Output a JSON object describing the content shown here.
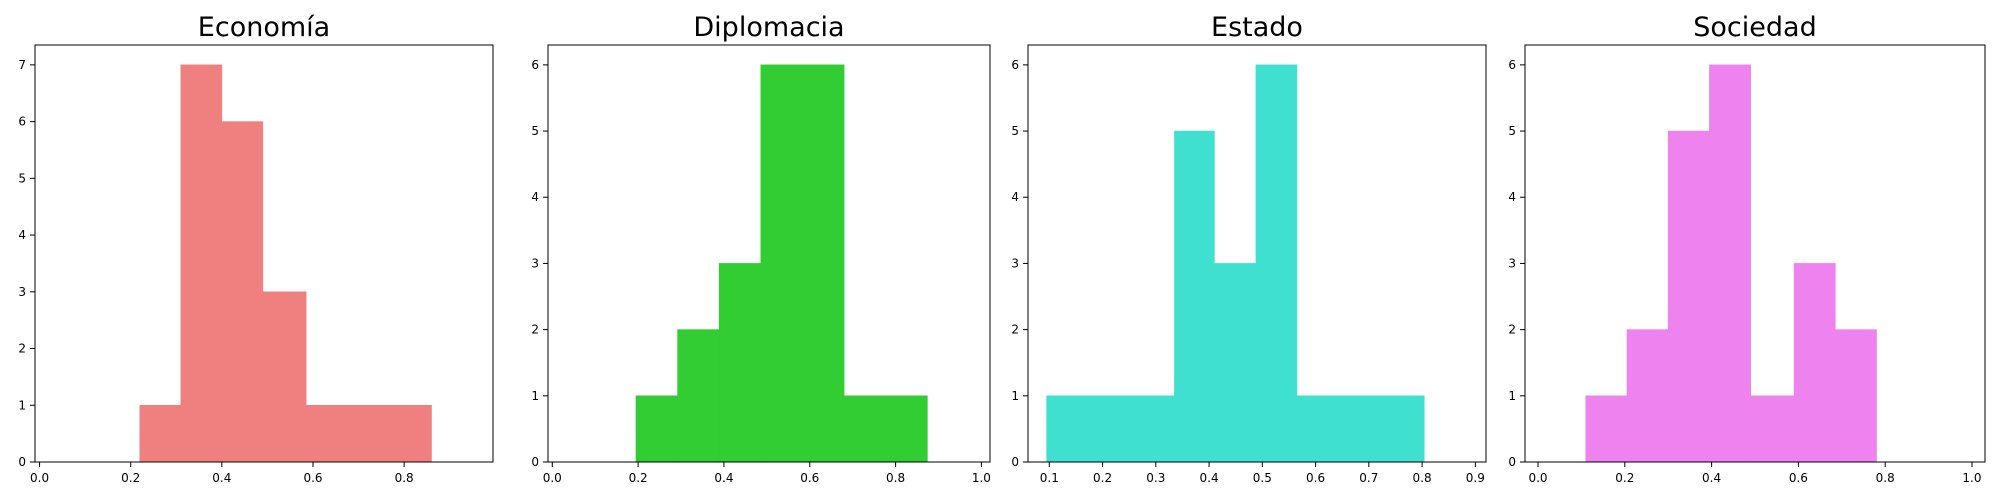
{
  "chart_data": [
    {
      "type": "bar",
      "title": "Economía",
      "color": "#f08080",
      "bins": [
        {
          "x0": 0.22,
          "x1": 0.31,
          "count": 1
        },
        {
          "x0": 0.31,
          "x1": 0.4,
          "count": 7
        },
        {
          "x0": 0.4,
          "x1": 0.49,
          "count": 6
        },
        {
          "x0": 0.49,
          "x1": 0.585,
          "count": 3
        },
        {
          "x0": 0.585,
          "x1": 0.675,
          "count": 1
        },
        {
          "x0": 0.675,
          "x1": 0.765,
          "count": 1
        },
        {
          "x0": 0.765,
          "x1": 0.86,
          "count": 1
        }
      ],
      "xlim": [
        -0.01,
        0.995
      ],
      "ylim": [
        0,
        7.35
      ],
      "xticks": [
        0.0,
        0.2,
        0.4,
        0.6,
        0.8
      ],
      "xtick_labels": [
        "0.0",
        "0.2",
        "0.4",
        "0.6",
        "0.8"
      ],
      "yticks": [
        0,
        1,
        2,
        3,
        4,
        5,
        6,
        7
      ],
      "ytick_labels": [
        "0",
        "1",
        "2",
        "3",
        "4",
        "5",
        "6",
        "7"
      ],
      "grid": false
    },
    {
      "type": "bar",
      "title": "Diplomacia",
      "color": "#32cd32",
      "bins": [
        {
          "x0": 0.195,
          "x1": 0.292,
          "count": 1
        },
        {
          "x0": 0.292,
          "x1": 0.389,
          "count": 2
        },
        {
          "x0": 0.389,
          "x1": 0.486,
          "count": 3
        },
        {
          "x0": 0.486,
          "x1": 0.583,
          "count": 6
        },
        {
          "x0": 0.583,
          "x1": 0.68,
          "count": 6
        },
        {
          "x0": 0.68,
          "x1": 0.777,
          "count": 1
        },
        {
          "x0": 0.777,
          "x1": 0.874,
          "count": 1
        }
      ],
      "xlim": [
        -0.01,
        1.02
      ],
      "ylim": [
        0,
        6.3
      ],
      "xticks": [
        0.0,
        0.2,
        0.4,
        0.6,
        0.8,
        1.0
      ],
      "xtick_labels": [
        "0.0",
        "0.2",
        "0.4",
        "0.6",
        "0.8",
        "1.0"
      ],
      "yticks": [
        0,
        1,
        2,
        3,
        4,
        5,
        6
      ],
      "ytick_labels": [
        "0",
        "1",
        "2",
        "3",
        "4",
        "5",
        "6"
      ],
      "grid": false
    },
    {
      "type": "bar",
      "title": "Estado",
      "color": "#40e0d0",
      "bins": [
        {
          "x0": 0.095,
          "x1": 0.19,
          "count": 1
        },
        {
          "x0": 0.19,
          "x1": 0.26,
          "count": 1
        },
        {
          "x0": 0.26,
          "x1": 0.335,
          "count": 1
        },
        {
          "x0": 0.335,
          "x1": 0.41,
          "count": 5
        },
        {
          "x0": 0.41,
          "x1": 0.488,
          "count": 3
        },
        {
          "x0": 0.488,
          "x1": 0.565,
          "count": 6
        },
        {
          "x0": 0.565,
          "x1": 0.645,
          "count": 1
        },
        {
          "x0": 0.645,
          "x1": 0.72,
          "count": 1
        },
        {
          "x0": 0.72,
          "x1": 0.804,
          "count": 1
        }
      ],
      "xlim": [
        0.06,
        0.92
      ],
      "ylim": [
        0,
        6.3
      ],
      "xticks": [
        0.1,
        0.2,
        0.3,
        0.4,
        0.5,
        0.6,
        0.7,
        0.8,
        0.9
      ],
      "xtick_labels": [
        "0.1",
        "0.2",
        "0.3",
        "0.4",
        "0.5",
        "0.6",
        "0.7",
        "0.8",
        "0.9"
      ],
      "yticks": [
        0,
        1,
        2,
        3,
        4,
        5,
        6
      ],
      "ytick_labels": [
        "0",
        "1",
        "2",
        "3",
        "4",
        "5",
        "6"
      ],
      "grid": false
    },
    {
      "type": "bar",
      "title": "Sociedad",
      "color": "#ee82ee",
      "bins": [
        {
          "x0": 0.11,
          "x1": 0.205,
          "count": 1
        },
        {
          "x0": 0.205,
          "x1": 0.3,
          "count": 2
        },
        {
          "x0": 0.3,
          "x1": 0.395,
          "count": 5
        },
        {
          "x0": 0.395,
          "x1": 0.49,
          "count": 6
        },
        {
          "x0": 0.49,
          "x1": 0.59,
          "count": 1
        },
        {
          "x0": 0.59,
          "x1": 0.685,
          "count": 3
        },
        {
          "x0": 0.685,
          "x1": 0.78,
          "count": 2
        }
      ],
      "xlim": [
        -0.03,
        1.03
      ],
      "ylim": [
        0,
        6.3
      ],
      "xticks": [
        0.0,
        0.2,
        0.4,
        0.6,
        0.8,
        1.0
      ],
      "xtick_labels": [
        "0.0",
        "0.2",
        "0.4",
        "0.6",
        "0.8",
        "1.0"
      ],
      "yticks": [
        0,
        1,
        2,
        3,
        4,
        5,
        6
      ],
      "ytick_labels": [
        "0",
        "1",
        "2",
        "3",
        "4",
        "5",
        "6"
      ],
      "grid": false
    }
  ]
}
